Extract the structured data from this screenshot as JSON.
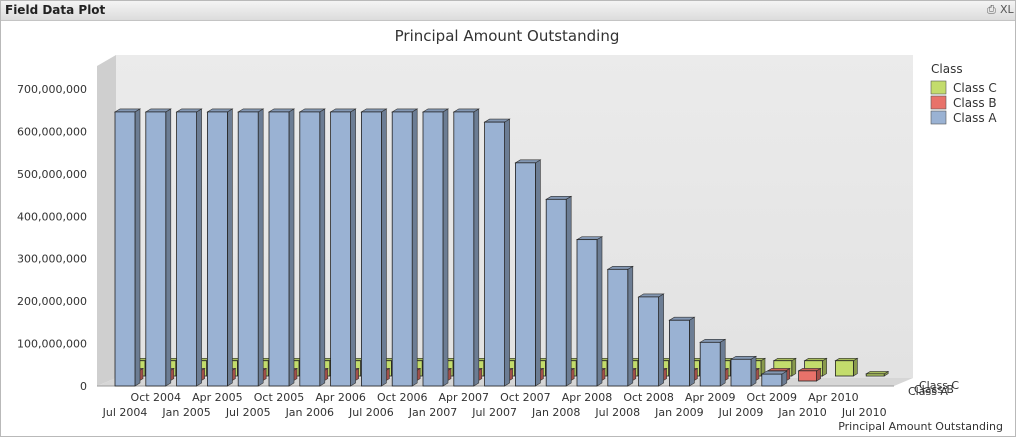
{
  "window": {
    "title": "Field Data Plot",
    "print_icon": "print-icon",
    "xl_label": "XL"
  },
  "chart_data": {
    "type": "bar",
    "title": "Principal Amount Outstanding",
    "xlabel": "Principal Amount Outstanding",
    "ylabel": "",
    "ylim": [
      0,
      700000000
    ],
    "yticks": [
      "0",
      "100,000,000",
      "200,000,000",
      "300,000,000",
      "400,000,000",
      "500,000,000",
      "600,000,000",
      "700,000,000"
    ],
    "legend_title": "Class",
    "legend_position": "right",
    "categories": [
      "Jul 2004",
      "Oct 2004",
      "Jan 2005",
      "Apr 2005",
      "Jul 2005",
      "Oct 2005",
      "Jan 2006",
      "Apr 2006",
      "Jul 2006",
      "Oct 2006",
      "Jan 2007",
      "Apr 2007",
      "Jul 2007",
      "Oct 2007",
      "Jan 2008",
      "Apr 2008",
      "Jul 2008",
      "Oct 2008",
      "Jan 2009",
      "Apr 2009",
      "Jul 2009",
      "Oct 2009",
      "Jan 2010",
      "Apr 2010",
      "Jul 2010"
    ],
    "series": [
      {
        "name": "Class A",
        "color": "#9ab2d3",
        "values": [
          646000000,
          646000000,
          646000000,
          646000000,
          646000000,
          646000000,
          646000000,
          646000000,
          646000000,
          646000000,
          646000000,
          646000000,
          622000000,
          526000000,
          440000000,
          345000000,
          275000000,
          210000000,
          155000000,
          103000000,
          63000000,
          28000000,
          0,
          0,
          0
        ]
      },
      {
        "name": "Class B",
        "color": "#e8726a",
        "values": [
          24000000,
          24000000,
          24000000,
          24000000,
          24000000,
          24000000,
          24000000,
          24000000,
          24000000,
          24000000,
          24000000,
          24000000,
          24000000,
          24000000,
          24000000,
          24000000,
          24000000,
          24000000,
          24000000,
          24000000,
          24000000,
          24000000,
          24000000,
          0,
          0
        ]
      },
      {
        "name": "Class C",
        "color": "#c3dc6c",
        "values": [
          36000000,
          36000000,
          36000000,
          36000000,
          36000000,
          36000000,
          36000000,
          36000000,
          36000000,
          36000000,
          36000000,
          36000000,
          36000000,
          36000000,
          36000000,
          36000000,
          36000000,
          36000000,
          36000000,
          36000000,
          36000000,
          36000000,
          36000000,
          36000000,
          5000000
        ]
      }
    ],
    "depth_axis_labels": [
      "Class C",
      "Class B",
      "Class A"
    ]
  }
}
